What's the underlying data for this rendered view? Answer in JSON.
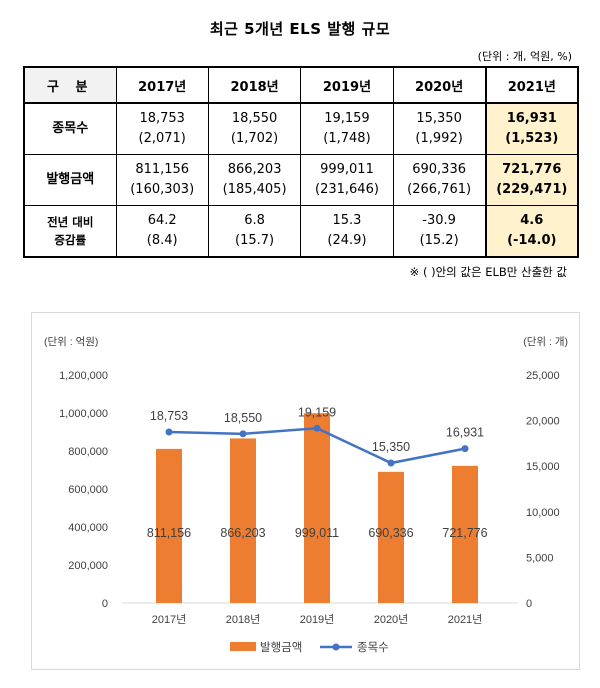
{
  "title": "최근 5개년 ELS 발행 규모",
  "unit_note": "(단위 : 개, 억원, %)",
  "table": {
    "corner": "구 분",
    "years": [
      "2017년",
      "2018년",
      "2019년",
      "2020년",
      "2021년"
    ],
    "rows": [
      {
        "label": "종목수",
        "values": [
          "18,753",
          "18,550",
          "19,159",
          "15,350",
          "16,931"
        ],
        "sub": [
          "(2,071)",
          "(1,702)",
          "(1,748)",
          "(1,992)",
          "(1,523)"
        ]
      },
      {
        "label": "발행금액",
        "values": [
          "811,156",
          "866,203",
          "999,011",
          "690,336",
          "721,776"
        ],
        "sub": [
          "(160,303)",
          "(185,405)",
          "(231,646)",
          "(266,761)",
          "(229,471)"
        ]
      },
      {
        "label": "전년 대비\n증감률",
        "values": [
          "64.2",
          "6.8",
          "15.3",
          "-30.9",
          "4.6"
        ],
        "sub": [
          "(8.4)",
          "(15.7)",
          "(24.9)",
          "(15.2)",
          "(-14.0)"
        ]
      }
    ]
  },
  "footnote": "※ (   )안의 값은 ELB만 산출한 값",
  "colors": {
    "bar": "#ed7d31",
    "line": "#4472c4",
    "highlight": "#fff2cc",
    "axis": "#d9d9d9"
  },
  "chart_data": {
    "type": "bar",
    "categories": [
      "2017년",
      "2018년",
      "2019년",
      "2020년",
      "2021년"
    ],
    "series": [
      {
        "name": "발행금액",
        "type": "bar",
        "axis": "left",
        "values": [
          811156,
          866203,
          999011,
          690336,
          721776
        ],
        "labels": [
          "811,156",
          "866,203",
          "999,011",
          "690,336",
          "721,776"
        ]
      },
      {
        "name": "종목수",
        "type": "line",
        "axis": "right",
        "values": [
          18753,
          18550,
          19159,
          15350,
          16931
        ],
        "labels": [
          "18,753",
          "18,550",
          "19,159",
          "15,350",
          "16,931"
        ]
      }
    ],
    "left_axis": {
      "label": "(단위 : 억원)",
      "ylim": [
        0,
        1200000
      ],
      "ticks": [
        "0",
        "200,000",
        "400,000",
        "600,000",
        "800,000",
        "1,000,000",
        "1,200,000"
      ]
    },
    "right_axis": {
      "label": "(단위 : 개)",
      "ylim": [
        0,
        25000
      ],
      "ticks": [
        "0",
        "5,000",
        "10,000",
        "15,000",
        "20,000",
        "25,000"
      ]
    },
    "grid": false,
    "legend_position": "bottom"
  }
}
